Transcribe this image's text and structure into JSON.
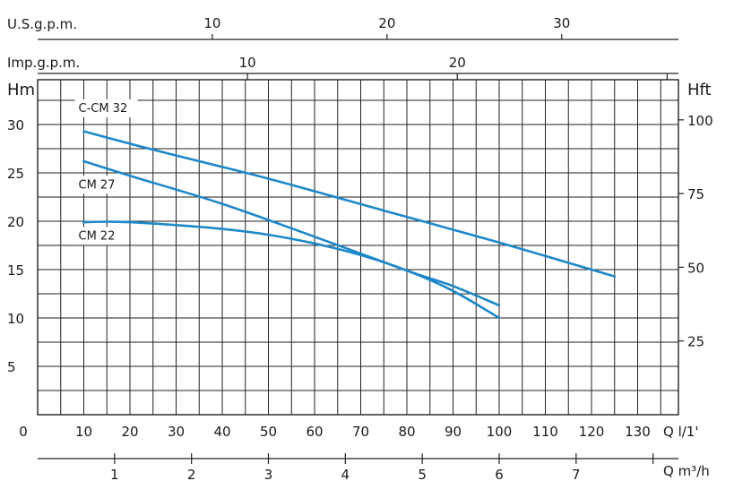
{
  "chart_data": {
    "type": "line",
    "colors": {
      "curve": "#1e88c8",
      "grid": "#222222",
      "plot_bg": "#ffffff"
    },
    "x_main": {
      "label": "Q l/1'",
      "range": [
        0,
        140
      ],
      "ticks": [
        0,
        10,
        20,
        30,
        40,
        50,
        60,
        70,
        80,
        90,
        100,
        110,
        120,
        130
      ],
      "tick_labels": [
        "0",
        "10",
        "20",
        "30",
        "40",
        "50",
        "60",
        "70",
        "80",
        "90",
        "100",
        "110",
        "120",
        "130"
      ]
    },
    "x_bottom_m3h": {
      "label": "Q m³/h",
      "ticks": [
        1,
        2,
        3,
        4,
        5,
        6,
        7,
        8
      ],
      "tick_labels": [
        "1",
        "2",
        "3",
        "4",
        "5",
        "6",
        "7",
        ""
      ]
    },
    "x_top_usgpm": {
      "label": "U.S.g.p.m.",
      "ticks": [
        10,
        20,
        30
      ],
      "tick_labels": [
        "10",
        "20",
        "30"
      ]
    },
    "x_top_impgpm": {
      "label": "Imp.g.p.m.",
      "ticks": [
        10,
        20,
        30
      ],
      "tick_labels": [
        "10",
        "20",
        ""
      ]
    },
    "y_left": {
      "label": "Hm",
      "range": [
        0,
        34
      ],
      "ticks": [
        5,
        10,
        15,
        20,
        25,
        30
      ],
      "tick_labels": [
        "5",
        "10",
        "15",
        "20",
        "25",
        "30"
      ]
    },
    "y_right": {
      "label": "Hft",
      "ticks": [
        25,
        50,
        75,
        100
      ],
      "tick_labels": [
        "25",
        "50",
        "75",
        "100"
      ]
    },
    "grid": true,
    "series": [
      {
        "name": "C-CM 32",
        "x": [
          10,
          25,
          50,
          75,
          100,
          125
        ],
        "y": [
          29.3,
          27.4,
          24.4,
          21.1,
          17.8,
          14.3
        ]
      },
      {
        "name": "CM 27",
        "x": [
          10,
          20,
          40,
          60,
          80,
          90,
          100
        ],
        "y": [
          26.2,
          24.7,
          21.8,
          18.4,
          14.9,
          13.3,
          11.3
        ]
      },
      {
        "name": "CM 22",
        "x": [
          10,
          15,
          20,
          30,
          40,
          50,
          60,
          70,
          80,
          90,
          100
        ],
        "y": [
          19.9,
          19.95,
          19.9,
          19.6,
          19.2,
          18.6,
          17.7,
          16.5,
          14.9,
          12.8,
          10.0
        ]
      }
    ]
  }
}
